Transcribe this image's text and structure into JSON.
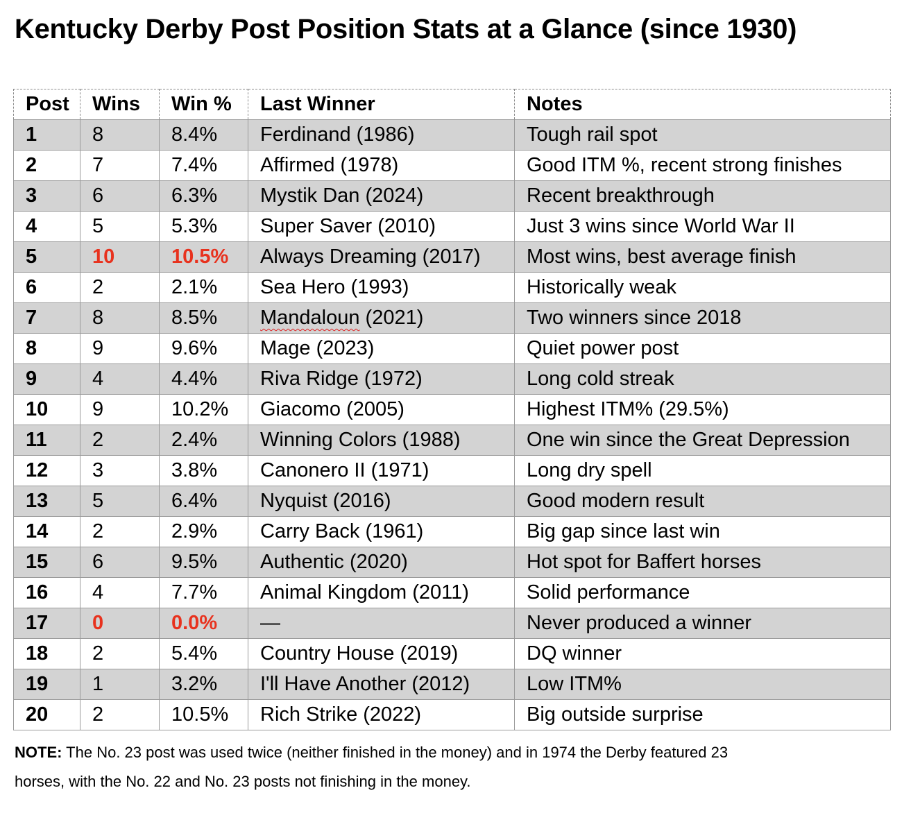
{
  "title": "Kentucky Derby Post Position Stats at a Glance (since 1930)",
  "headers": [
    "Post",
    "Wins",
    "Win %",
    "Last Winner",
    "Notes"
  ],
  "highlight_color": "#e8321e",
  "rows": [
    {
      "post": "1",
      "wins": "8",
      "pct": "8.4%",
      "winner": "Ferdinand (1986)",
      "notes": "Tough rail spot"
    },
    {
      "post": "2",
      "wins": "7",
      "pct": "7.4%",
      "winner": "Affirmed (1978)",
      "notes": "Good ITM %, recent strong finishes"
    },
    {
      "post": "3",
      "wins": "6",
      "pct": "6.3%",
      "winner": "Mystik Dan (2024)",
      "notes": "Recent breakthrough"
    },
    {
      "post": "4",
      "wins": "5",
      "pct": "5.3%",
      "winner": "Super Saver (2010)",
      "notes": "Just 3 wins since World War II"
    },
    {
      "post": "5",
      "wins": "10",
      "pct": "10.5%",
      "winner": "Always Dreaming (2017)",
      "notes": "Most wins, best average finish"
    },
    {
      "post": "6",
      "wins": "2",
      "pct": "2.1%",
      "winner": "Sea Hero (1993)",
      "notes": "Historically weak"
    },
    {
      "post": "7",
      "wins": "8",
      "pct": "8.5%",
      "winner_name": "Mandaloun",
      "winner_year": " (2021)",
      "notes": "Two winners since 2018"
    },
    {
      "post": "8",
      "wins": "9",
      "pct": "9.6%",
      "winner": "Mage (2023)",
      "notes": "Quiet power post"
    },
    {
      "post": "9",
      "wins": "4",
      "pct": "4.4%",
      "winner": "Riva Ridge (1972)",
      "notes": "Long cold streak"
    },
    {
      "post": "10",
      "wins": "9",
      "pct": "10.2%",
      "winner": "Giacomo (2005)",
      "notes": "Highest ITM% (29.5%)"
    },
    {
      "post": "11",
      "wins": "2",
      "pct": "2.4%",
      "winner": "Winning Colors (1988)",
      "notes": "One win since the Great Depression"
    },
    {
      "post": "12",
      "wins": "3",
      "pct": "3.8%",
      "winner": "Canonero II (1971)",
      "notes": "Long dry spell"
    },
    {
      "post": "13",
      "wins": "5",
      "pct": "6.4%",
      "winner": "Nyquist (2016)",
      "notes": "Good modern result"
    },
    {
      "post": "14",
      "wins": "2",
      "pct": "2.9%",
      "winner": "Carry Back (1961)",
      "notes": "Big gap since last win"
    },
    {
      "post": "15",
      "wins": "6",
      "pct": "9.5%",
      "winner": "Authentic (2020)",
      "notes": "Hot spot for Baffert horses"
    },
    {
      "post": "16",
      "wins": "4",
      "pct": "7.7%",
      "winner": "Animal Kingdom (2011)",
      "notes": "Solid performance"
    },
    {
      "post": "17",
      "wins": "0",
      "pct": "0.0%",
      "winner": "—",
      "notes": "Never produced a winner"
    },
    {
      "post": "18",
      "wins": "2",
      "pct": "5.4%",
      "winner": "Country House (2019)",
      "notes": "DQ winner"
    },
    {
      "post": "19",
      "wins": "1",
      "pct": "3.2%",
      "winner": "I'll Have Another (2012)",
      "notes": "Low ITM%"
    },
    {
      "post": "20",
      "wins": "2",
      "pct": "10.5%",
      "winner": "Rich Strike (2022)",
      "notes": "Big outside surprise"
    }
  ],
  "note": {
    "label": "NOTE:",
    "text": " The No. 23 post was used twice (neither finished in the money) and in 1974 the Derby featured 23 horses, with the No. 22 and No. 23 posts not finishing in the money."
  }
}
